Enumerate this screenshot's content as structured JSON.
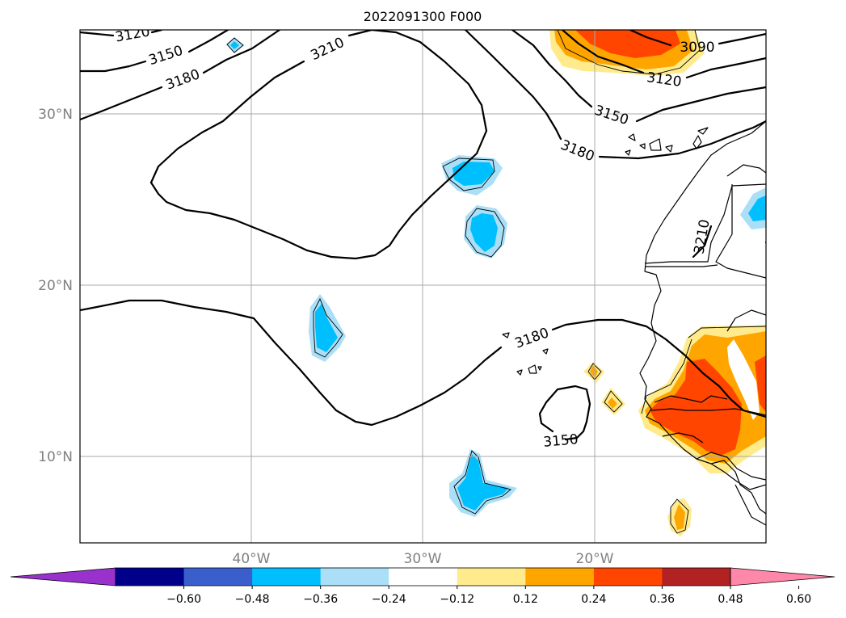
{
  "map": {
    "title": "2022091300 F000",
    "lat_labels": [
      "30°N",
      "20°N",
      "10°N"
    ],
    "lon_labels": [
      "40°W",
      "30°W",
      "20°W"
    ],
    "contour_labels": [
      "3120",
      "3150",
      "3180",
      "3210",
      "3090",
      "3120",
      "3150",
      "3180",
      "3210",
      "3180",
      "3150"
    ],
    "contour_interval": 30,
    "grid": true,
    "colors": {
      "land_outline": "#000000",
      "grid": "#a9a9a9"
    }
  },
  "colorbar": {
    "ticks": [
      "−0.60",
      "−0.48",
      "−0.36",
      "−0.24",
      "−0.12",
      "0.12",
      "0.24",
      "0.36",
      "0.48",
      "0.60"
    ],
    "colors": [
      "#9932cc",
      "#00008b",
      "#3a5fcd",
      "#00bfff",
      "#aadff7",
      "#ffffff",
      "#ffeb8c",
      "#ffa500",
      "#ff4500",
      "#b22222",
      "#ff88aa"
    ],
    "extend": "both",
    "orientation": "horizontal"
  }
}
